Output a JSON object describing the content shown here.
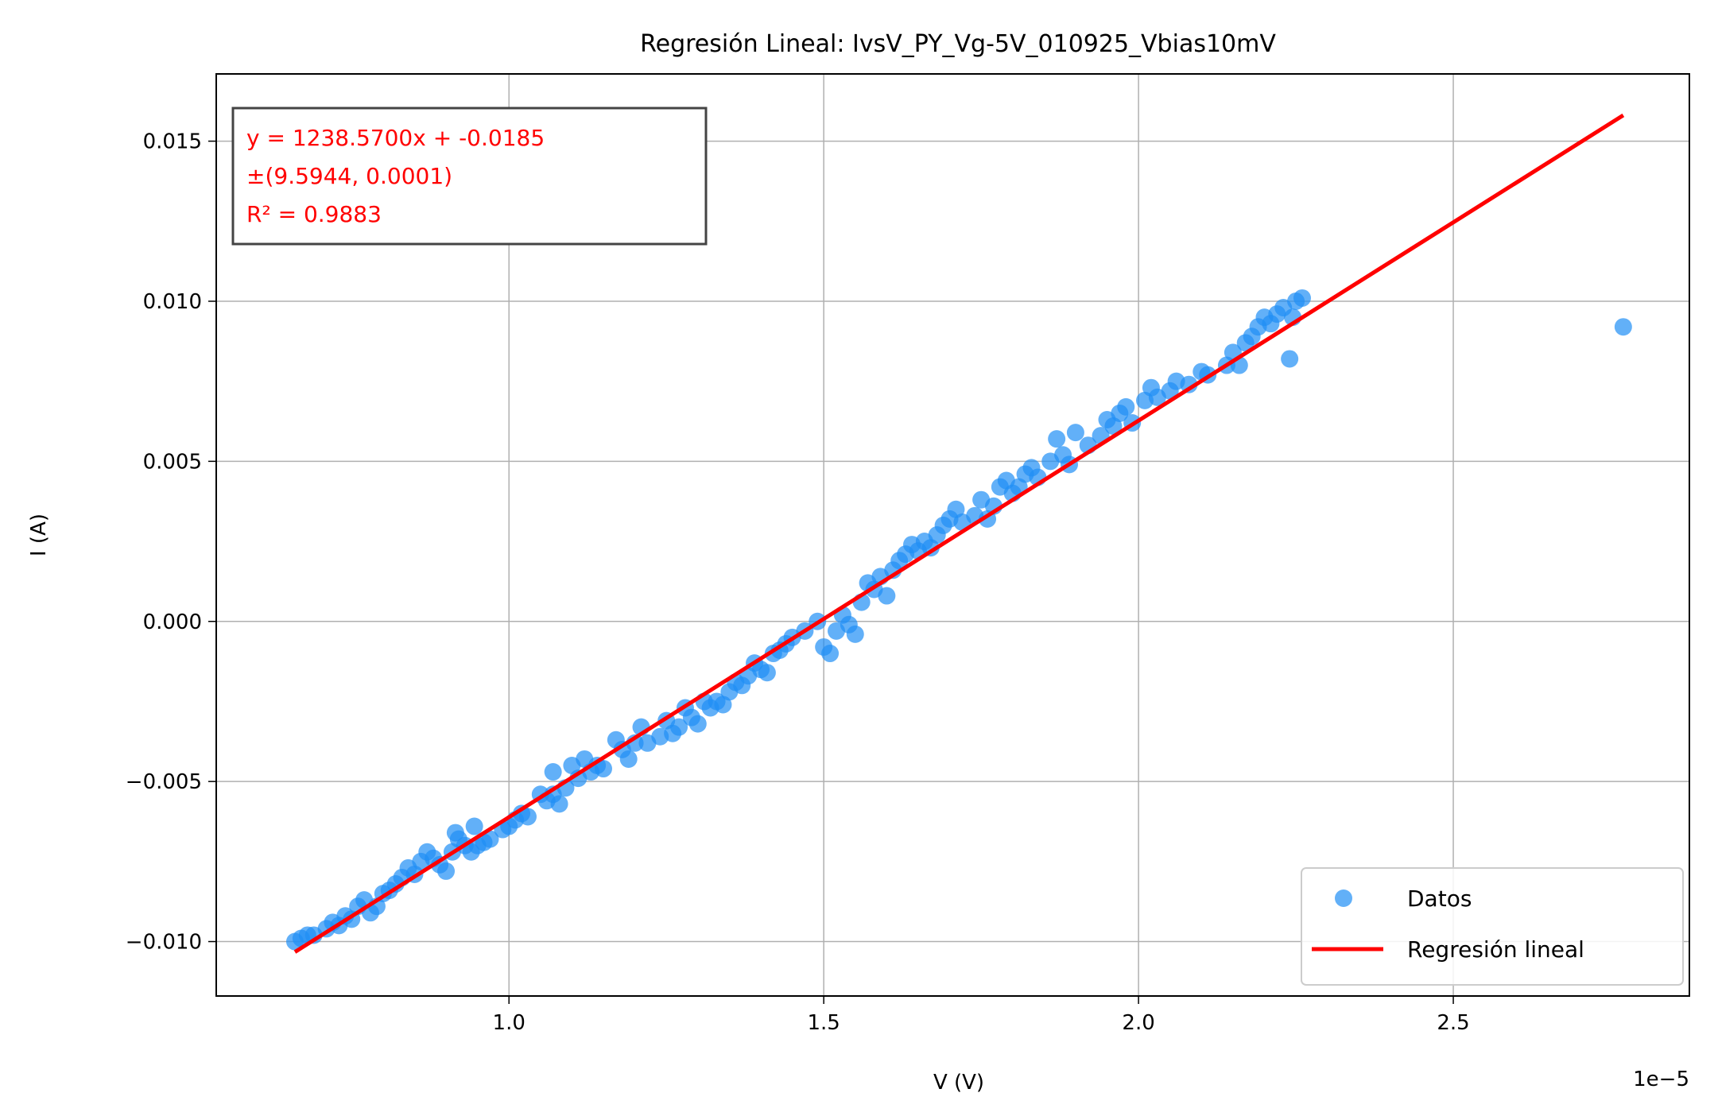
{
  "chart_data": {
    "type": "scatter",
    "title": "Regresión Lineal: IvsV_PY_Vg-5V_010925_Vbias10mV",
    "xlabel": "V (V)",
    "ylabel": "I (A)",
    "x_offset_label": "1e−5",
    "x_scale": 1e-05,
    "xlim": [
      5.35e-06,
      2.875e-05
    ],
    "ylim": [
      -0.0117,
      0.0171
    ],
    "grid": true,
    "xticks": [
      1e-05,
      1.5e-05,
      2e-05,
      2.5e-05
    ],
    "xtick_labels": [
      "1.0",
      "1.5",
      "2.0",
      "2.5"
    ],
    "yticks": [
      -0.01,
      -0.005,
      0.0,
      0.005,
      0.01,
      0.015
    ],
    "ytick_labels": [
      "−0.010",
      "−0.005",
      "0.000",
      "0.005",
      "0.010",
      "0.015"
    ],
    "annotation": {
      "lines": [
        "y = 1238.5700x + -0.0185",
        "±(9.5944, 0.0001)",
        "R² = 0.9883"
      ],
      "color": "#ff0000"
    },
    "legend": {
      "placement": "lower-right",
      "entries": [
        {
          "label": "Datos",
          "kind": "marker",
          "color": "#1f8ff5"
        },
        {
          "label": "Regresión lineal",
          "kind": "line",
          "color": "#ff0000"
        }
      ]
    },
    "series": [
      {
        "name": "Datos",
        "kind": "scatter",
        "color": "#1f8ff5",
        "points": [
          [
            6.6e-06,
            -0.01
          ],
          [
            6.7e-06,
            -0.0099
          ],
          [
            6.8e-06,
            -0.0098
          ],
          [
            6.9e-06,
            -0.0098
          ],
          [
            7.1e-06,
            -0.0096
          ],
          [
            7.2e-06,
            -0.0094
          ],
          [
            7.3e-06,
            -0.0095
          ],
          [
            7.4e-06,
            -0.0092
          ],
          [
            7.5e-06,
            -0.0093
          ],
          [
            7.6e-06,
            -0.0089
          ],
          [
            7.7e-06,
            -0.0087
          ],
          [
            7.8e-06,
            -0.0091
          ],
          [
            7.9e-06,
            -0.0089
          ],
          [
            8e-06,
            -0.0085
          ],
          [
            8.1e-06,
            -0.0084
          ],
          [
            8.2e-06,
            -0.0082
          ],
          [
            8.3e-06,
            -0.008
          ],
          [
            8.4e-06,
            -0.0077
          ],
          [
            8.5e-06,
            -0.0079
          ],
          [
            8.6e-06,
            -0.0075
          ],
          [
            8.7e-06,
            -0.0072
          ],
          [
            8.8e-06,
            -0.0074
          ],
          [
            8.9e-06,
            -0.0076
          ],
          [
            9e-06,
            -0.0078
          ],
          [
            9.1e-06,
            -0.0072
          ],
          [
            9.15e-06,
            -0.0066
          ],
          [
            9.2e-06,
            -0.0068
          ],
          [
            9.3e-06,
            -0.007
          ],
          [
            9.4e-06,
            -0.0072
          ],
          [
            9.45e-06,
            -0.0064
          ],
          [
            9.5e-06,
            -0.007
          ],
          [
            9.6e-06,
            -0.0069
          ],
          [
            9.7e-06,
            -0.0068
          ],
          [
            9.9e-06,
            -0.0065
          ],
          [
            1e-05,
            -0.0064
          ],
          [
            1.01e-05,
            -0.0062
          ],
          [
            1.02e-05,
            -0.006
          ],
          [
            1.03e-05,
            -0.0061
          ],
          [
            1.05e-05,
            -0.0054
          ],
          [
            1.06e-05,
            -0.0056
          ],
          [
            1.07e-05,
            -0.0054
          ],
          [
            1.07e-05,
            -0.0047
          ],
          [
            1.08e-05,
            -0.0057
          ],
          [
            1.09e-05,
            -0.0052
          ],
          [
            1.1e-05,
            -0.0045
          ],
          [
            1.11e-05,
            -0.0049
          ],
          [
            1.12e-05,
            -0.0043
          ],
          [
            1.13e-05,
            -0.0047
          ],
          [
            1.14e-05,
            -0.0045
          ],
          [
            1.15e-05,
            -0.0046
          ],
          [
            1.17e-05,
            -0.0037
          ],
          [
            1.18e-05,
            -0.004
          ],
          [
            1.19e-05,
            -0.0043
          ],
          [
            1.2e-05,
            -0.0038
          ],
          [
            1.21e-05,
            -0.0033
          ],
          [
            1.22e-05,
            -0.0038
          ],
          [
            1.24e-05,
            -0.0036
          ],
          [
            1.25e-05,
            -0.0031
          ],
          [
            1.26e-05,
            -0.0035
          ],
          [
            1.27e-05,
            -0.0033
          ],
          [
            1.28e-05,
            -0.0027
          ],
          [
            1.29e-05,
            -0.003
          ],
          [
            1.3e-05,
            -0.0032
          ],
          [
            1.31e-05,
            -0.0025
          ],
          [
            1.32e-05,
            -0.0027
          ],
          [
            1.33e-05,
            -0.0025
          ],
          [
            1.34e-05,
            -0.0026
          ],
          [
            1.35e-05,
            -0.0022
          ],
          [
            1.36e-05,
            -0.0019
          ],
          [
            1.37e-05,
            -0.002
          ],
          [
            1.38e-05,
            -0.0017
          ],
          [
            1.39e-05,
            -0.0013
          ],
          [
            1.4e-05,
            -0.0015
          ],
          [
            1.41e-05,
            -0.0016
          ],
          [
            1.42e-05,
            -0.001
          ],
          [
            1.43e-05,
            -0.0009
          ],
          [
            1.44e-05,
            -0.0007
          ],
          [
            1.45e-05,
            -0.0005
          ],
          [
            1.47e-05,
            -0.0003
          ],
          [
            1.49e-05,
            0.0
          ],
          [
            1.5e-05,
            -0.0008
          ],
          [
            1.51e-05,
            -0.001
          ],
          [
            1.52e-05,
            -0.0003
          ],
          [
            1.53e-05,
            0.0002
          ],
          [
            1.54e-05,
            -0.0001
          ],
          [
            1.55e-05,
            -0.0004
          ],
          [
            1.56e-05,
            0.0006
          ],
          [
            1.57e-05,
            0.0012
          ],
          [
            1.58e-05,
            0.001
          ],
          [
            1.59e-05,
            0.0014
          ],
          [
            1.6e-05,
            0.0008
          ],
          [
            1.61e-05,
            0.0016
          ],
          [
            1.62e-05,
            0.0019
          ],
          [
            1.63e-05,
            0.0021
          ],
          [
            1.64e-05,
            0.0024
          ],
          [
            1.65e-05,
            0.0022
          ],
          [
            1.66e-05,
            0.0025
          ],
          [
            1.67e-05,
            0.0023
          ],
          [
            1.68e-05,
            0.0027
          ],
          [
            1.69e-05,
            0.003
          ],
          [
            1.7e-05,
            0.0032
          ],
          [
            1.71e-05,
            0.0035
          ],
          [
            1.72e-05,
            0.0031
          ],
          [
            1.74e-05,
            0.0033
          ],
          [
            1.75e-05,
            0.0038
          ],
          [
            1.76e-05,
            0.0032
          ],
          [
            1.77e-05,
            0.0036
          ],
          [
            1.78e-05,
            0.0042
          ],
          [
            1.79e-05,
            0.0044
          ],
          [
            1.8e-05,
            0.004
          ],
          [
            1.81e-05,
            0.0042
          ],
          [
            1.82e-05,
            0.0046
          ],
          [
            1.83e-05,
            0.0048
          ],
          [
            1.84e-05,
            0.0045
          ],
          [
            1.86e-05,
            0.005
          ],
          [
            1.87e-05,
            0.0057
          ],
          [
            1.88e-05,
            0.0052
          ],
          [
            1.89e-05,
            0.0049
          ],
          [
            1.9e-05,
            0.0059
          ],
          [
            1.92e-05,
            0.0055
          ],
          [
            1.94e-05,
            0.0058
          ],
          [
            1.95e-05,
            0.0063
          ],
          [
            1.96e-05,
            0.0061
          ],
          [
            1.97e-05,
            0.0065
          ],
          [
            1.98e-05,
            0.0067
          ],
          [
            1.99e-05,
            0.0062
          ],
          [
            2.01e-05,
            0.0069
          ],
          [
            2.02e-05,
            0.0073
          ],
          [
            2.03e-05,
            0.007
          ],
          [
            2.05e-05,
            0.0072
          ],
          [
            2.06e-05,
            0.0075
          ],
          [
            2.08e-05,
            0.0074
          ],
          [
            2.1e-05,
            0.0078
          ],
          [
            2.11e-05,
            0.0077
          ],
          [
            2.14e-05,
            0.008
          ],
          [
            2.15e-05,
            0.0084
          ],
          [
            2.16e-05,
            0.008
          ],
          [
            2.17e-05,
            0.0087
          ],
          [
            2.18e-05,
            0.0089
          ],
          [
            2.19e-05,
            0.0092
          ],
          [
            2.2e-05,
            0.0095
          ],
          [
            2.21e-05,
            0.0093
          ],
          [
            2.22e-05,
            0.0096
          ],
          [
            2.23e-05,
            0.0098
          ],
          [
            2.24e-05,
            0.0082
          ],
          [
            2.245e-05,
            0.0095
          ],
          [
            2.25e-05,
            0.01
          ],
          [
            2.26e-05,
            0.0101
          ],
          [
            2.77e-05,
            0.0092
          ]
        ]
      },
      {
        "name": "Regresión lineal",
        "kind": "line",
        "color": "#ff0000",
        "slope": 1238.57,
        "intercept": -0.0185,
        "x_range": [
          6.6e-06,
          2.77e-05
        ]
      }
    ]
  }
}
